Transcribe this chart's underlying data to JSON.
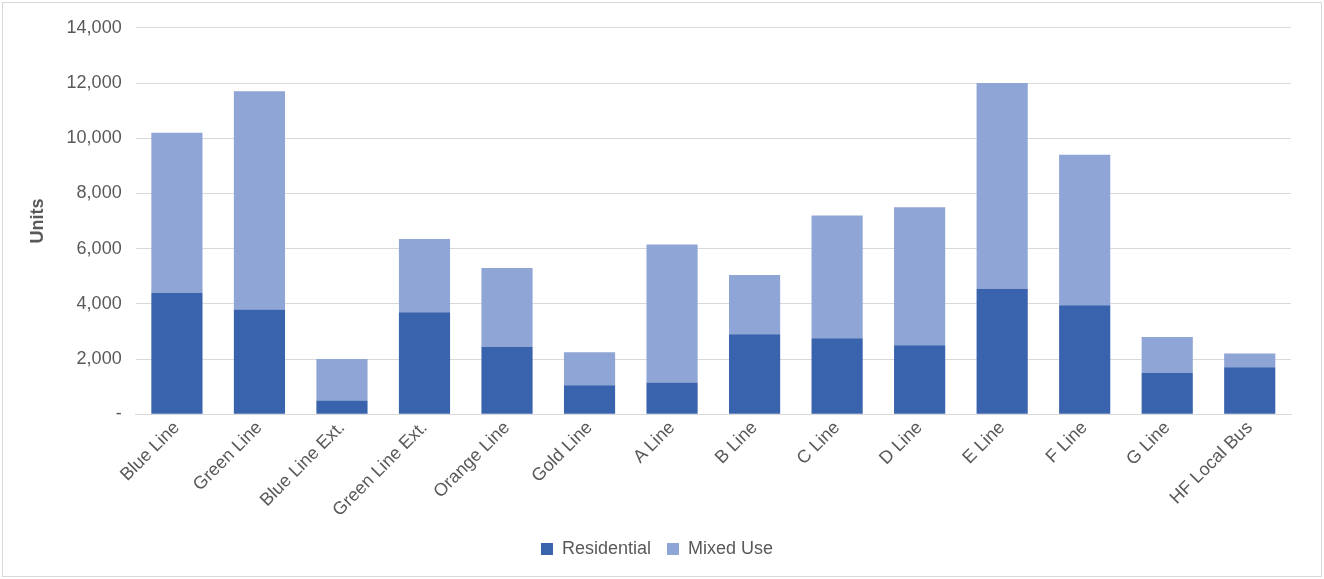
{
  "chart_data": {
    "type": "bar",
    "ylabel": "Units",
    "stacked": true,
    "categories": [
      "Blue Line",
      "Green Line",
      "Blue Line Ext.",
      "Green Line Ext.",
      "Orange Line",
      "Gold Line",
      "A Line",
      "B Line",
      "C Line",
      "D Line",
      "E Line",
      "F Line",
      "G Line",
      "HF Local Bus"
    ],
    "series": [
      {
        "name": "Residential",
        "color": "#3a63ad",
        "values": [
          4400,
          3800,
          500,
          3700,
          2450,
          1050,
          1150,
          2900,
          2750,
          2500,
          4550,
          3950,
          1500,
          1700
        ]
      },
      {
        "name": "Mixed Use",
        "color": "#8fa5d6",
        "values": [
          5800,
          7900,
          1500,
          2650,
          2850,
          1200,
          5000,
          2150,
          4450,
          5000,
          7450,
          5450,
          1300,
          500
        ]
      }
    ],
    "ylim": [
      0,
      14000
    ],
    "yticks": [
      {
        "value": 0,
        "label": "-"
      },
      {
        "value": 2000,
        "label": "2,000"
      },
      {
        "value": 4000,
        "label": "4,000"
      },
      {
        "value": 6000,
        "label": "6,000"
      },
      {
        "value": 8000,
        "label": "8,000"
      },
      {
        "value": 10000,
        "label": "10,000"
      },
      {
        "value": 12000,
        "label": "12,000"
      },
      {
        "value": 14000,
        "label": "14,000"
      }
    ],
    "grid": "y",
    "legend": "bottom"
  }
}
